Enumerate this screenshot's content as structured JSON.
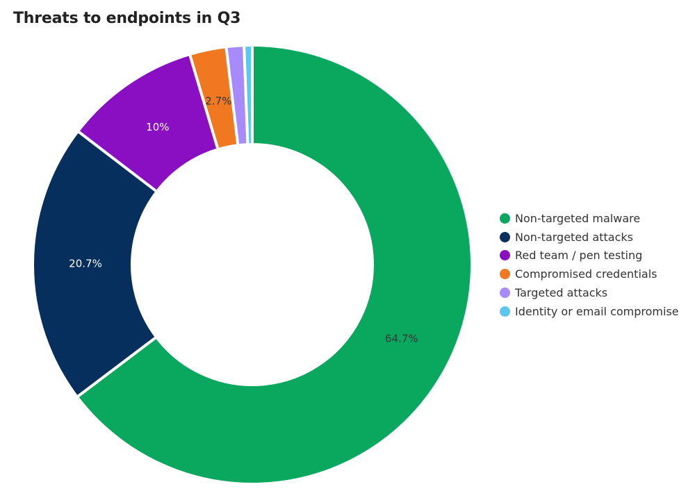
{
  "chart_data": {
    "type": "pie",
    "donut": true,
    "title": "Threats to endpoints in Q3",
    "legend_position": "right",
    "slices": [
      {
        "name": "Non-targeted malware",
        "value": 64.7,
        "label": "64.7%",
        "color": "#0aa85f",
        "label_color": "#333333"
      },
      {
        "name": "Non-targeted attacks",
        "value": 20.7,
        "label": "20.7%",
        "color": "#062f5e",
        "label_color": "#ffffff"
      },
      {
        "name": "Red team / pen testing",
        "value": 10.0,
        "label": "10%",
        "color": "#8a0fc2",
        "label_color": "#ffffff"
      },
      {
        "name": "Compromised credentials",
        "value": 2.7,
        "label": "2.7%",
        "color": "#f07820",
        "label_color": "#333333"
      },
      {
        "name": "Targeted attacks",
        "value": 1.3,
        "label": "",
        "color": "#a78bfa",
        "label_color": "#333333"
      },
      {
        "name": "Identity or email compromise",
        "value": 0.6,
        "label": "",
        "color": "#5cc8ee",
        "label_color": "#333333"
      }
    ]
  }
}
